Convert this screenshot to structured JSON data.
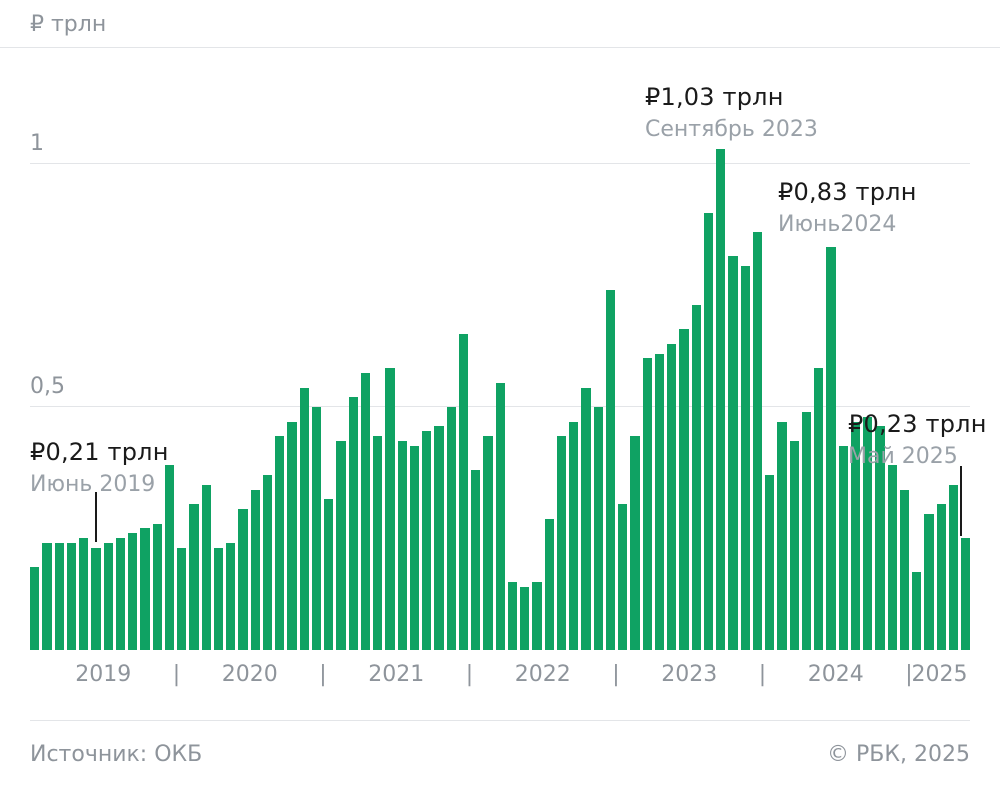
{
  "header": {
    "unit_label": "₽ трлн"
  },
  "footer": {
    "source": "Источник: ОКБ",
    "credit": "© РБК, 2025"
  },
  "colors": {
    "bar": "#0FA263",
    "grid": "#E3E5E8",
    "axis_text": "#8E949B",
    "annotation_value_text": "#1A1A1A",
    "annotation_date_text": "#9AA1A8"
  },
  "annotations": [
    {
      "id": "jun2019",
      "value_label": "₽0,21 трлн",
      "date_label": "Июнь 2019"
    },
    {
      "id": "sep2023",
      "value_label": "₽1,03 трлн",
      "date_label": "Сентябрь 2023"
    },
    {
      "id": "jun2024",
      "value_label": "₽0,83 трлн",
      "date_label": "Июнь2024"
    },
    {
      "id": "may2025",
      "value_label": "₽0,23 трлн",
      "date_label": "Май 2025"
    }
  ],
  "chart_data": {
    "type": "bar",
    "unit": "₽ трлн",
    "ylim": [
      0,
      1.1
    ],
    "grid": "horizontal",
    "yticks": [
      {
        "value": 0.5,
        "label": "0,5"
      },
      {
        "value": 1,
        "label": "1"
      }
    ],
    "xaxis_separator": "|",
    "years": [
      {
        "year": "2019",
        "values": [
          0.17,
          0.22,
          0.22,
          0.22,
          0.23,
          0.21,
          0.22,
          0.23,
          0.24,
          0.25,
          0.26,
          0.38
        ]
      },
      {
        "year": "2020",
        "values": [
          0.21,
          0.3,
          0.34,
          0.21,
          0.22,
          0.29,
          0.33,
          0.36,
          0.44,
          0.47,
          0.54,
          0.5
        ]
      },
      {
        "year": "2021",
        "values": [
          0.31,
          0.43,
          0.52,
          0.57,
          0.44,
          0.58,
          0.43,
          0.42,
          0.45,
          0.46,
          0.5,
          0.65
        ]
      },
      {
        "year": "2022",
        "values": [
          0.37,
          0.44,
          0.55,
          0.14,
          0.13,
          0.14,
          0.27,
          0.44,
          0.47,
          0.54,
          0.5,
          0.74
        ]
      },
      {
        "year": "2023",
        "values": [
          0.3,
          0.44,
          0.6,
          0.61,
          0.63,
          0.66,
          0.71,
          0.9,
          1.03,
          0.81,
          0.79,
          0.86
        ]
      },
      {
        "year": "2024",
        "values": [
          0.36,
          0.47,
          0.43,
          0.49,
          0.58,
          0.83,
          0.42,
          0.47,
          0.48,
          0.46,
          0.38,
          0.33
        ]
      },
      {
        "year": "2025",
        "values": [
          0.16,
          0.28,
          0.3,
          0.34,
          0.23
        ]
      }
    ],
    "highlighted_points": [
      {
        "label": "Июнь 2019",
        "value": 0.21
      },
      {
        "label": "Сентябрь 2023",
        "value": 1.03
      },
      {
        "label": "Июнь2024",
        "value": 0.83
      },
      {
        "label": "Май 2025",
        "value": 0.23
      }
    ]
  }
}
